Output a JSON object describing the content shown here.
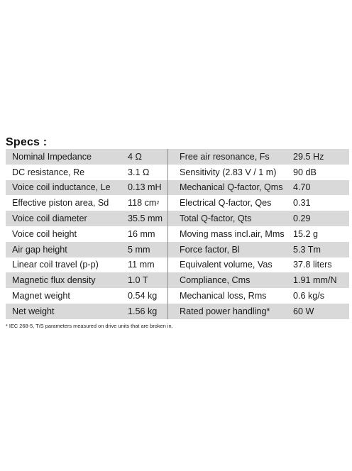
{
  "heading": "Specs :",
  "rows": [
    {
      "left_name": "Nominal Impedance",
      "left_value": "4 Ω",
      "right_name": "Free air resonance, Fs",
      "right_value": "29.5 Hz"
    },
    {
      "left_name": "DC resistance, Re",
      "left_value": "3.1 Ω",
      "right_name": "Sensitivity (2.83 V / 1 m)",
      "right_value": "90 dB"
    },
    {
      "left_name": "Voice coil inductance, Le",
      "left_value": "0.13 mH",
      "right_name": "Mechanical Q-factor, Qms",
      "right_value": "4.70"
    },
    {
      "left_name": "Effective piston area, Sd",
      "left_value": "118 cm",
      "left_value_sup": "2",
      "right_name": "Electrical Q-factor, Qes",
      "right_value": "0.31"
    },
    {
      "left_name": "Voice coil diameter",
      "left_value": "35.5 mm",
      "right_name": "Total Q-factor, Qts",
      "right_value": "0.29"
    },
    {
      "left_name": "Voice coil height",
      "left_value": "16 mm",
      "right_name": "Moving mass incl.air, Mms",
      "right_value": "15.2 g"
    },
    {
      "left_name": "Air gap height",
      "left_value": "5 mm",
      "right_name": "Force factor, Bl",
      "right_value": "5.3 Tm"
    },
    {
      "left_name": "Linear coil travel (p-p)",
      "left_value": "11 mm",
      "right_name": "Equivalent volume, Vas",
      "right_value": "37.8 liters"
    },
    {
      "left_name": "Magnetic flux density",
      "left_value": "1.0 T",
      "right_name": "Compliance, Cms",
      "right_value": "1.91 mm/N"
    },
    {
      "left_name": "Magnet weight",
      "left_value": "0.54 kg",
      "right_name": "Mechanical loss, Rms",
      "right_value": "0.6 kg/s"
    },
    {
      "left_name": "Net weight",
      "left_value": "1.56 kg",
      "right_name": "Rated power handling*",
      "right_value": "60 W"
    }
  ],
  "footnote": "* IEC 268-5, T/S parameters measured on drive units that are broken in."
}
